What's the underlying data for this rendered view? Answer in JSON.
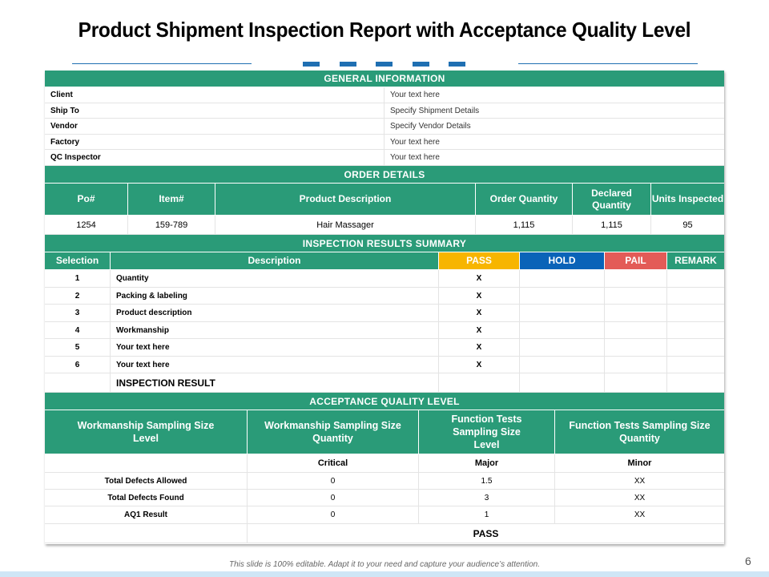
{
  "title": "Product Shipment Inspection Report with Acceptance Quality Level",
  "general": {
    "header": "GENERAL  INFORMATION",
    "rows": [
      {
        "label": "Client",
        "value": "Your text here"
      },
      {
        "label": "Ship To",
        "value": "Specify Shipment Details"
      },
      {
        "label": "Vendor",
        "value": "Specify Vendor Details"
      },
      {
        "label": "Factory",
        "value": "Your text here"
      },
      {
        "label": "QC Inspector",
        "value": "Your text here"
      }
    ]
  },
  "order": {
    "header": "ORDER  DETAILS",
    "columns": [
      "Po#",
      "Item#",
      "Product Description",
      "Order Quantity",
      "Declared Quantity",
      "Units Inspected"
    ],
    "row": [
      "1254",
      "159-789",
      "Hair Massager",
      "1,115",
      "1,115",
      "95"
    ]
  },
  "inspection": {
    "header": "INSPECTION  RESULTS  SUMMARY",
    "columns": [
      "Selection",
      "Description",
      "PASS",
      "HOLD",
      "PAIL",
      "REMARK"
    ],
    "rows": [
      {
        "num": "1",
        "desc": "Quantity",
        "pass": "X"
      },
      {
        "num": "2",
        "desc": "Packing & labeling",
        "pass": "X"
      },
      {
        "num": "3",
        "desc": "Product description",
        "pass": "X"
      },
      {
        "num": "4",
        "desc": "Workmanship",
        "pass": "X"
      },
      {
        "num": "5",
        "desc": "Your text here",
        "pass": "X"
      },
      {
        "num": "6",
        "desc": "Your text here",
        "pass": "X"
      }
    ],
    "result_label": "INSPECTION RESULT"
  },
  "aql": {
    "header": "ACCEPTANCE  QUALITY  LEVEL",
    "columns": [
      "Workmanship  Sampling Size Level",
      "Workmanship  Sampling Size Quantity",
      "Function Tests Sampling Size Level",
      "Function Tests  Sampling Size Quantity"
    ],
    "subheaders": [
      "Critical",
      "Major",
      "Minor"
    ],
    "rows": [
      {
        "label": "Total Defects Allowed",
        "critical": "0",
        "major": "1.5",
        "minor": "XX"
      },
      {
        "label": "Total Defects Found",
        "critical": "0",
        "major": "3",
        "minor": "XX"
      },
      {
        "label": "AQ1 Result",
        "critical": "0",
        "major": "1",
        "minor": "XX"
      }
    ],
    "final": "PASS"
  },
  "footer": "This slide is 100% editable. Adapt it to your need and capture your audience’s attention.",
  "page_number": "6",
  "colors": {
    "accent": "#2a9b78",
    "pass": "#f7b500",
    "hold": "#0a63b8",
    "pail": "#e35b57",
    "brand_blue": "#1f6fb2"
  }
}
